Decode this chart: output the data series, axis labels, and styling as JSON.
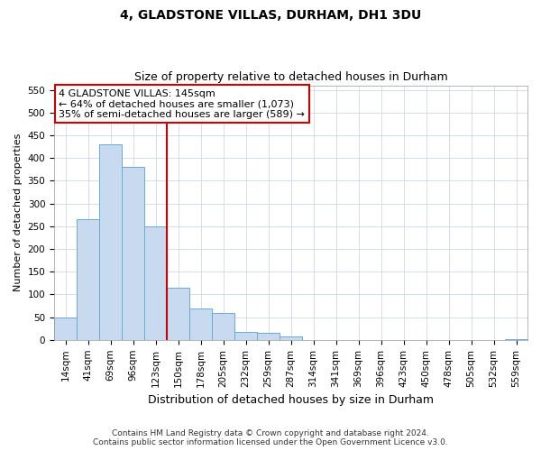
{
  "title": "4, GLADSTONE VILLAS, DURHAM, DH1 3DU",
  "subtitle": "Size of property relative to detached houses in Durham",
  "xlabel": "Distribution of detached houses by size in Durham",
  "ylabel": "Number of detached properties",
  "categories": [
    "14sqm",
    "41sqm",
    "69sqm",
    "96sqm",
    "123sqm",
    "150sqm",
    "178sqm",
    "205sqm",
    "232sqm",
    "259sqm",
    "287sqm",
    "314sqm",
    "341sqm",
    "369sqm",
    "396sqm",
    "423sqm",
    "450sqm",
    "478sqm",
    "505sqm",
    "532sqm",
    "559sqm"
  ],
  "values": [
    50,
    265,
    430,
    380,
    250,
    115,
    70,
    60,
    17,
    15,
    7,
    0,
    0,
    0,
    0,
    0,
    0,
    0,
    0,
    0,
    2
  ],
  "bar_color": "#c8daf0",
  "bar_edge_color": "#6aaad4",
  "vline_index": 5,
  "vline_color": "#cc0000",
  "annotation_line1": "4 GLADSTONE VILLAS: 145sqm",
  "annotation_line2": "← 64% of detached houses are smaller (1,073)",
  "annotation_line3": "35% of semi-detached houses are larger (589) →",
  "annotation_box_facecolor": "#ffffff",
  "annotation_box_edgecolor": "#cc0000",
  "ylim": [
    0,
    560
  ],
  "yticks": [
    0,
    50,
    100,
    150,
    200,
    250,
    300,
    350,
    400,
    450,
    500,
    550
  ],
  "footer_line1": "Contains HM Land Registry data © Crown copyright and database right 2024.",
  "footer_line2": "Contains public sector information licensed under the Open Government Licence v3.0.",
  "fig_bg_color": "#ffffff",
  "plot_bg_color": "#ffffff",
  "grid_color": "#d0d8e8",
  "title_fontsize": 10,
  "subtitle_fontsize": 9,
  "ylabel_fontsize": 8,
  "xlabel_fontsize": 9,
  "tick_fontsize": 7.5,
  "footer_fontsize": 6.5
}
